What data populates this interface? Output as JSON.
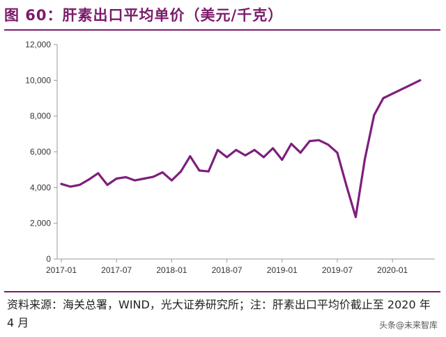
{
  "header": {
    "title": "图 60：肝素出口平均单价（美元/千克）"
  },
  "footer": {
    "source_text": "资料来源：海关总署，WIND，光大证券研究所；注：肝素出口平均价截止至 2020 年 4 月",
    "watermark": "头条@未来智库"
  },
  "colors": {
    "accent": "#7b1a6b",
    "line": "#7d1f7e"
  },
  "chart_data": {
    "type": "line",
    "title": "肝素出口平均单价（美元/千克）",
    "xlabel": "",
    "ylabel": "",
    "ylim": [
      0,
      12000
    ],
    "yticks": [
      0,
      2000,
      4000,
      6000,
      8000,
      10000,
      12000
    ],
    "ytick_labels": [
      "0",
      "2,000",
      "4,000",
      "6,000",
      "8,000",
      "10,000",
      "12,000"
    ],
    "xtick_labels": [
      "2017-01",
      "2017-07",
      "2018-01",
      "2018-07",
      "2019-01",
      "2019-07",
      "2020-01"
    ],
    "xtick_index": [
      0,
      6,
      12,
      18,
      24,
      30,
      36
    ],
    "grid": false,
    "legend": "none",
    "series": [
      {
        "name": "肝素出口平均单价",
        "x": [
          "2017-01",
          "2017-02",
          "2017-03",
          "2017-04",
          "2017-05",
          "2017-06",
          "2017-07",
          "2017-08",
          "2017-09",
          "2017-10",
          "2017-11",
          "2017-12",
          "2018-01",
          "2018-02",
          "2018-03",
          "2018-04",
          "2018-05",
          "2018-06",
          "2018-07",
          "2018-08",
          "2018-09",
          "2018-10",
          "2018-11",
          "2018-12",
          "2019-01",
          "2019-02",
          "2019-03",
          "2019-04",
          "2019-05",
          "2019-06",
          "2019-07",
          "2019-08",
          "2019-09",
          "2019-10",
          "2019-11",
          "2019-12",
          "2020-01",
          "2020-02",
          "2020-03",
          "2020-04"
        ],
        "values": [
          4200,
          4050,
          4150,
          4450,
          4800,
          4150,
          4500,
          4580,
          4400,
          4500,
          4600,
          4850,
          4400,
          4900,
          5750,
          4950,
          4900,
          6100,
          5700,
          6100,
          5800,
          6100,
          5700,
          6200,
          5550,
          6450,
          5950,
          6600,
          6650,
          6400,
          5950,
          4100,
          2350,
          5600,
          8050,
          9000,
          9250,
          9500,
          9750,
          10000
        ]
      }
    ]
  }
}
